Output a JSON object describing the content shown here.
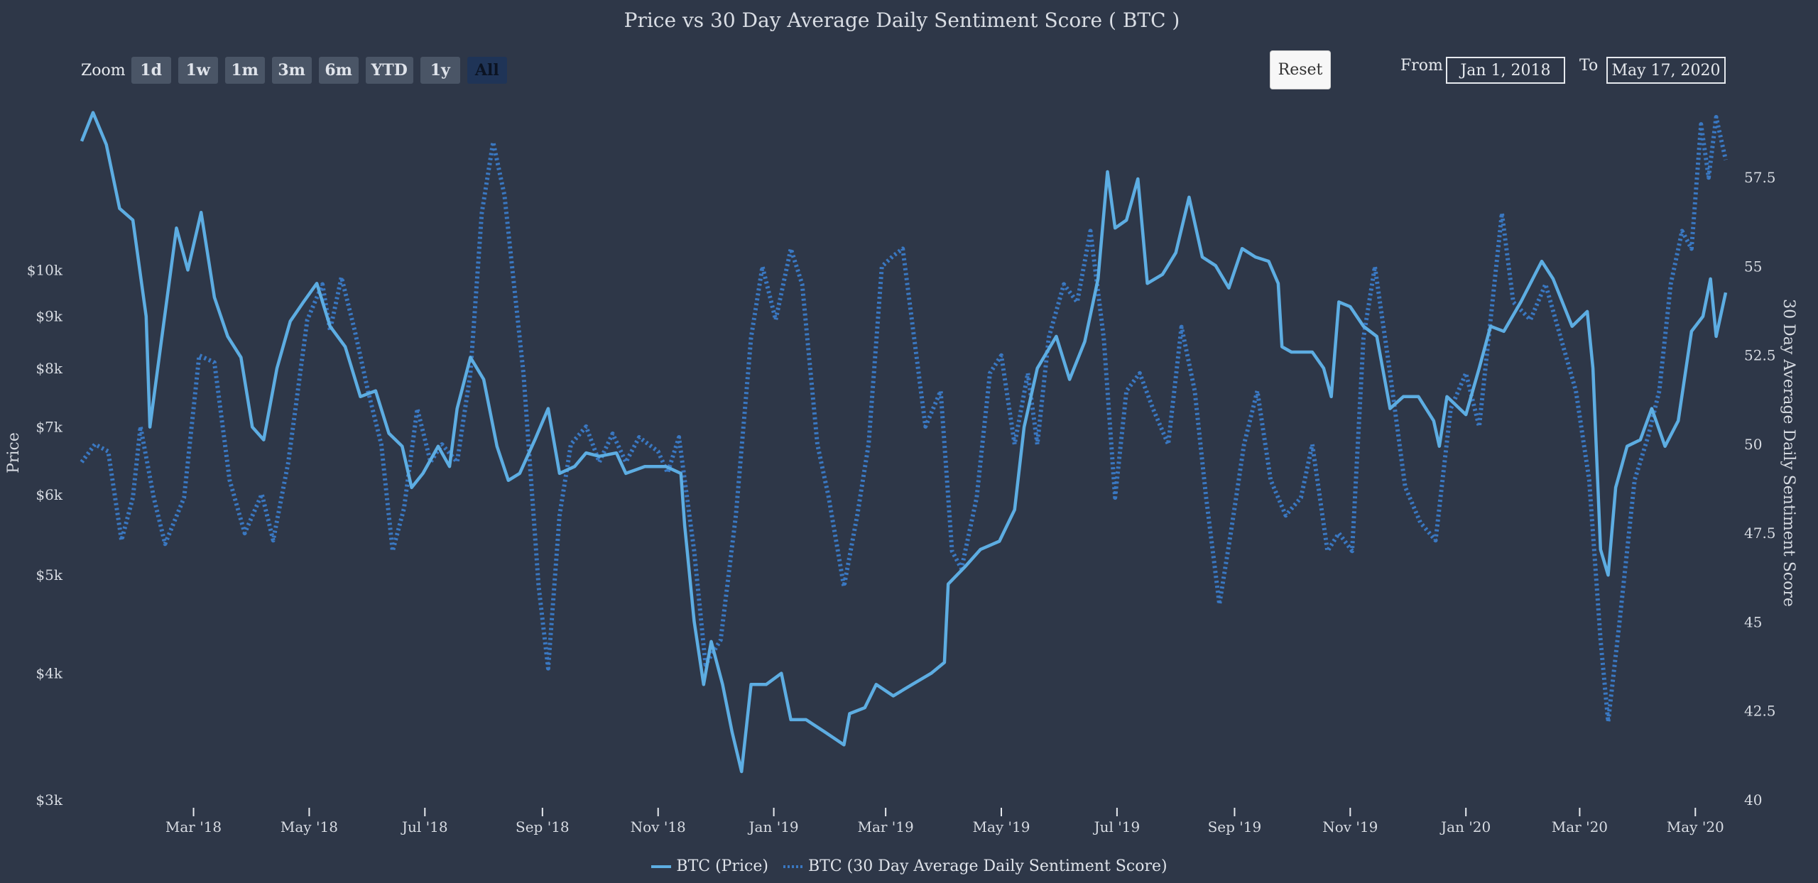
{
  "title": "Price vs 30 Day Average Daily Sentiment Score ( BTC )",
  "zoom": {
    "label": "Zoom",
    "buttons": [
      "1d",
      "1w",
      "1m",
      "3m",
      "6m",
      "YTD",
      "1y",
      "All"
    ],
    "active": "All"
  },
  "reset_label": "Reset",
  "range": {
    "from_label": "From",
    "from_value": "Jan 1, 2018",
    "to_label": "To",
    "to_value": "May 17, 2020"
  },
  "colors": {
    "background": "#2e3748",
    "price": "#5dade2",
    "sentiment": "#3a78c2",
    "text": "#dfe3ea"
  },
  "chart_data": {
    "type": "line",
    "title": "Price vs 30 Day Average Daily Sentiment Score ( BTC )",
    "x_range": [
      "2018-01-01",
      "2020-05-17"
    ],
    "x_ticks": [
      "Mar '18",
      "May '18",
      "Jul '18",
      "Sep '18",
      "Nov '18",
      "Jan '19",
      "Mar '19",
      "May '19",
      "Jul '19",
      "Sep '19",
      "Nov '19",
      "Jan '20",
      "Mar '20",
      "May '20"
    ],
    "y_left": {
      "label": "Price",
      "scale": "log",
      "ylim": [
        3000,
        14500
      ],
      "ticks": [
        "$3k",
        "$4k",
        "$5k",
        "$6k",
        "$7k",
        "$8k",
        "$9k",
        "$10k"
      ],
      "tick_values": [
        3000,
        4000,
        5000,
        6000,
        7000,
        8000,
        9000,
        10000
      ]
    },
    "y_right": {
      "label": "30 Day Average Daily Sentiment Score",
      "ylim": [
        40,
        59.5
      ],
      "ticks": [
        "40",
        "42.5",
        "45",
        "47.5",
        "50",
        "52.5",
        "55",
        "57.5"
      ],
      "tick_values": [
        40,
        42.5,
        45,
        47.5,
        50,
        52.5,
        55,
        57.5
      ]
    },
    "legend_position": "bottom-center",
    "series": [
      {
        "name": "BTC (Price)",
        "axis": "left",
        "style": "solid",
        "points": [
          [
            "2018-01-01",
            13400
          ],
          [
            "2018-01-07",
            14300
          ],
          [
            "2018-01-14",
            13300
          ],
          [
            "2018-01-21",
            11500
          ],
          [
            "2018-01-28",
            11200
          ],
          [
            "2018-02-04",
            9000
          ],
          [
            "2018-02-06",
            7000
          ],
          [
            "2018-02-12",
            8500
          ],
          [
            "2018-02-20",
            11000
          ],
          [
            "2018-02-26",
            10000
          ],
          [
            "2018-03-05",
            11400
          ],
          [
            "2018-03-12",
            9400
          ],
          [
            "2018-03-19",
            8600
          ],
          [
            "2018-03-26",
            8200
          ],
          [
            "2018-04-01",
            7000
          ],
          [
            "2018-04-07",
            6800
          ],
          [
            "2018-04-14",
            8000
          ],
          [
            "2018-04-21",
            8900
          ],
          [
            "2018-04-28",
            9300
          ],
          [
            "2018-05-05",
            9700
          ],
          [
            "2018-05-12",
            8800
          ],
          [
            "2018-05-20",
            8400
          ],
          [
            "2018-05-28",
            7500
          ],
          [
            "2018-06-05",
            7600
          ],
          [
            "2018-06-12",
            6900
          ],
          [
            "2018-06-19",
            6700
          ],
          [
            "2018-06-24",
            6100
          ],
          [
            "2018-06-30",
            6300
          ],
          [
            "2018-07-08",
            6700
          ],
          [
            "2018-07-14",
            6400
          ],
          [
            "2018-07-18",
            7300
          ],
          [
            "2018-07-25",
            8200
          ],
          [
            "2018-08-01",
            7800
          ],
          [
            "2018-08-08",
            6700
          ],
          [
            "2018-08-14",
            6200
          ],
          [
            "2018-08-20",
            6300
          ],
          [
            "2018-08-28",
            6800
          ],
          [
            "2018-09-04",
            7300
          ],
          [
            "2018-09-10",
            6300
          ],
          [
            "2018-09-18",
            6400
          ],
          [
            "2018-09-24",
            6600
          ],
          [
            "2018-10-01",
            6550
          ],
          [
            "2018-10-10",
            6600
          ],
          [
            "2018-10-15",
            6300
          ],
          [
            "2018-10-25",
            6400
          ],
          [
            "2018-11-05",
            6400
          ],
          [
            "2018-11-13",
            6300
          ],
          [
            "2018-11-15",
            5600
          ],
          [
            "2018-11-20",
            4500
          ],
          [
            "2018-11-25",
            3900
          ],
          [
            "2018-11-29",
            4300
          ],
          [
            "2018-12-05",
            3900
          ],
          [
            "2018-12-10",
            3500
          ],
          [
            "2018-12-15",
            3200
          ],
          [
            "2018-12-20",
            3900
          ],
          [
            "2018-12-28",
            3900
          ],
          [
            "2019-01-05",
            4000
          ],
          [
            "2019-01-10",
            3600
          ],
          [
            "2019-01-18",
            3600
          ],
          [
            "2019-01-28",
            3500
          ],
          [
            "2019-02-07",
            3400
          ],
          [
            "2019-02-10",
            3650
          ],
          [
            "2019-02-18",
            3700
          ],
          [
            "2019-02-24",
            3900
          ],
          [
            "2019-03-05",
            3800
          ],
          [
            "2019-03-15",
            3900
          ],
          [
            "2019-03-25",
            4000
          ],
          [
            "2019-04-01",
            4100
          ],
          [
            "2019-04-03",
            4900
          ],
          [
            "2019-04-12",
            5100
          ],
          [
            "2019-04-20",
            5300
          ],
          [
            "2019-04-30",
            5400
          ],
          [
            "2019-05-08",
            5800
          ],
          [
            "2019-05-13",
            7000
          ],
          [
            "2019-05-20",
            8000
          ],
          [
            "2019-05-30",
            8600
          ],
          [
            "2019-06-06",
            7800
          ],
          [
            "2019-06-14",
            8500
          ],
          [
            "2019-06-21",
            9800
          ],
          [
            "2019-06-26",
            12500
          ],
          [
            "2019-06-30",
            11000
          ],
          [
            "2019-07-06",
            11200
          ],
          [
            "2019-07-12",
            12300
          ],
          [
            "2019-07-17",
            9700
          ],
          [
            "2019-07-25",
            9900
          ],
          [
            "2019-08-01",
            10400
          ],
          [
            "2019-08-08",
            11800
          ],
          [
            "2019-08-15",
            10300
          ],
          [
            "2019-08-22",
            10100
          ],
          [
            "2019-08-29",
            9600
          ],
          [
            "2019-09-05",
            10500
          ],
          [
            "2019-09-12",
            10300
          ],
          [
            "2019-09-19",
            10200
          ],
          [
            "2019-09-24",
            9700
          ],
          [
            "2019-09-26",
            8400
          ],
          [
            "2019-10-01",
            8300
          ],
          [
            "2019-10-12",
            8300
          ],
          [
            "2019-10-18",
            8000
          ],
          [
            "2019-10-22",
            7500
          ],
          [
            "2019-10-26",
            9300
          ],
          [
            "2019-11-01",
            9200
          ],
          [
            "2019-11-08",
            8800
          ],
          [
            "2019-11-15",
            8600
          ],
          [
            "2019-11-22",
            7300
          ],
          [
            "2019-11-29",
            7500
          ],
          [
            "2019-12-07",
            7500
          ],
          [
            "2019-12-15",
            7100
          ],
          [
            "2019-12-18",
            6700
          ],
          [
            "2019-12-22",
            7500
          ],
          [
            "2020-01-01",
            7200
          ],
          [
            "2020-01-08",
            8000
          ],
          [
            "2020-01-14",
            8800
          ],
          [
            "2020-01-21",
            8700
          ],
          [
            "2020-01-30",
            9300
          ],
          [
            "2020-02-10",
            10200
          ],
          [
            "2020-02-16",
            9800
          ],
          [
            "2020-02-26",
            8800
          ],
          [
            "2020-03-05",
            9100
          ],
          [
            "2020-03-08",
            8000
          ],
          [
            "2020-03-12",
            5300
          ],
          [
            "2020-03-16",
            5000
          ],
          [
            "2020-03-20",
            6100
          ],
          [
            "2020-03-26",
            6700
          ],
          [
            "2020-04-02",
            6800
          ],
          [
            "2020-04-08",
            7300
          ],
          [
            "2020-04-15",
            6700
          ],
          [
            "2020-04-22",
            7100
          ],
          [
            "2020-04-29",
            8700
          ],
          [
            "2020-05-05",
            9000
          ],
          [
            "2020-05-09",
            9800
          ],
          [
            "2020-05-12",
            8600
          ],
          [
            "2020-05-17",
            9500
          ]
        ]
      },
      {
        "name": "BTC (30 Day Average Daily Sentiment Score)",
        "axis": "right",
        "style": "dotted",
        "points": [
          [
            "2018-01-01",
            49.5
          ],
          [
            "2018-01-08",
            50.0
          ],
          [
            "2018-01-15",
            49.8
          ],
          [
            "2018-01-22",
            47.3
          ],
          [
            "2018-01-28",
            48.5
          ],
          [
            "2018-02-01",
            50.5
          ],
          [
            "2018-02-08",
            48.5
          ],
          [
            "2018-02-14",
            47.2
          ],
          [
            "2018-02-24",
            48.5
          ],
          [
            "2018-03-04",
            52.5
          ],
          [
            "2018-03-12",
            52.3
          ],
          [
            "2018-03-20",
            49.0
          ],
          [
            "2018-03-28",
            47.5
          ],
          [
            "2018-04-06",
            48.6
          ],
          [
            "2018-04-12",
            47.3
          ],
          [
            "2018-04-20",
            49.5
          ],
          [
            "2018-04-30",
            53.5
          ],
          [
            "2018-05-08",
            54.5
          ],
          [
            "2018-05-12",
            53.2
          ],
          [
            "2018-05-18",
            54.7
          ],
          [
            "2018-05-25",
            53.2
          ],
          [
            "2018-06-01",
            51.5
          ],
          [
            "2018-06-08",
            50.0
          ],
          [
            "2018-06-14",
            47.0
          ],
          [
            "2018-06-20",
            48.2
          ],
          [
            "2018-06-27",
            51.0
          ],
          [
            "2018-07-04",
            49.5
          ],
          [
            "2018-07-10",
            50.0
          ],
          [
            "2018-07-18",
            49.5
          ],
          [
            "2018-07-25",
            52.0
          ],
          [
            "2018-07-31",
            56.5
          ],
          [
            "2018-08-06",
            58.5
          ],
          [
            "2018-08-12",
            57.0
          ],
          [
            "2018-08-22",
            52.0
          ],
          [
            "2018-08-30",
            46.0
          ],
          [
            "2018-09-04",
            43.7
          ],
          [
            "2018-09-10",
            48.0
          ],
          [
            "2018-09-16",
            50.0
          ],
          [
            "2018-09-24",
            50.5
          ],
          [
            "2018-10-01",
            49.5
          ],
          [
            "2018-10-08",
            50.3
          ],
          [
            "2018-10-15",
            49.5
          ],
          [
            "2018-10-22",
            50.2
          ],
          [
            "2018-11-01",
            49.8
          ],
          [
            "2018-11-06",
            49.2
          ],
          [
            "2018-11-12",
            50.2
          ],
          [
            "2018-11-20",
            47.0
          ],
          [
            "2018-11-26",
            43.8
          ],
          [
            "2018-12-04",
            44.5
          ],
          [
            "2018-12-12",
            48.0
          ],
          [
            "2018-12-20",
            53.0
          ],
          [
            "2018-12-26",
            55.0
          ],
          [
            "2019-01-02",
            53.5
          ],
          [
            "2019-01-10",
            55.5
          ],
          [
            "2019-01-16",
            54.5
          ],
          [
            "2019-01-24",
            50.0
          ],
          [
            "2019-01-30",
            48.5
          ],
          [
            "2019-02-07",
            46.0
          ],
          [
            "2019-02-14",
            48.0
          ],
          [
            "2019-02-20",
            50.0
          ],
          [
            "2019-02-27",
            55.0
          ],
          [
            "2019-03-05",
            55.3
          ],
          [
            "2019-03-10",
            55.5
          ],
          [
            "2019-03-16",
            53.0
          ],
          [
            "2019-03-22",
            50.5
          ],
          [
            "2019-03-30",
            51.5
          ],
          [
            "2019-04-05",
            47.0
          ],
          [
            "2019-04-10",
            46.5
          ],
          [
            "2019-04-18",
            48.5
          ],
          [
            "2019-04-25",
            52.0
          ],
          [
            "2019-05-01",
            52.5
          ],
          [
            "2019-05-08",
            50.0
          ],
          [
            "2019-05-15",
            52.0
          ],
          [
            "2019-05-20",
            50.0
          ],
          [
            "2019-05-26",
            53.0
          ],
          [
            "2019-06-03",
            54.5
          ],
          [
            "2019-06-10",
            54.0
          ],
          [
            "2019-06-17",
            56.0
          ],
          [
            "2019-06-24",
            53.0
          ],
          [
            "2019-06-30",
            48.5
          ],
          [
            "2019-07-06",
            51.5
          ],
          [
            "2019-07-13",
            52.0
          ],
          [
            "2019-07-20",
            51.0
          ],
          [
            "2019-07-28",
            50.0
          ],
          [
            "2019-08-04",
            53.3
          ],
          [
            "2019-08-11",
            51.5
          ],
          [
            "2019-08-17",
            48.5
          ],
          [
            "2019-08-24",
            45.5
          ],
          [
            "2019-08-30",
            47.5
          ],
          [
            "2019-09-06",
            50.0
          ],
          [
            "2019-09-13",
            51.5
          ],
          [
            "2019-09-20",
            49.0
          ],
          [
            "2019-09-28",
            48.0
          ],
          [
            "2019-10-06",
            48.5
          ],
          [
            "2019-10-12",
            50.0
          ],
          [
            "2019-10-20",
            47.0
          ],
          [
            "2019-10-26",
            47.5
          ],
          [
            "2019-11-02",
            47.0
          ],
          [
            "2019-11-08",
            53.0
          ],
          [
            "2019-11-14",
            55.0
          ],
          [
            "2019-11-22",
            52.0
          ],
          [
            "2019-11-30",
            48.8
          ],
          [
            "2019-12-08",
            47.8
          ],
          [
            "2019-12-16",
            47.3
          ],
          [
            "2019-12-24",
            51.0
          ],
          [
            "2020-01-01",
            52.0
          ],
          [
            "2020-01-08",
            50.5
          ],
          [
            "2020-01-14",
            53.5
          ],
          [
            "2020-01-20",
            56.5
          ],
          [
            "2020-01-26",
            54.0
          ],
          [
            "2020-02-04",
            53.5
          ],
          [
            "2020-02-12",
            54.5
          ],
          [
            "2020-02-20",
            53.0
          ],
          [
            "2020-02-28",
            51.5
          ],
          [
            "2020-03-06",
            49.0
          ],
          [
            "2020-03-12",
            44.5
          ],
          [
            "2020-03-16",
            42.2
          ],
          [
            "2020-03-22",
            45.0
          ],
          [
            "2020-03-30",
            49.0
          ],
          [
            "2020-04-06",
            50.2
          ],
          [
            "2020-04-12",
            51.5
          ],
          [
            "2020-04-18",
            54.5
          ],
          [
            "2020-04-24",
            56.0
          ],
          [
            "2020-04-29",
            55.5
          ],
          [
            "2020-05-04",
            59.0
          ],
          [
            "2020-05-08",
            57.5
          ],
          [
            "2020-05-12",
            59.2
          ],
          [
            "2020-05-17",
            58.0
          ]
        ]
      }
    ]
  }
}
